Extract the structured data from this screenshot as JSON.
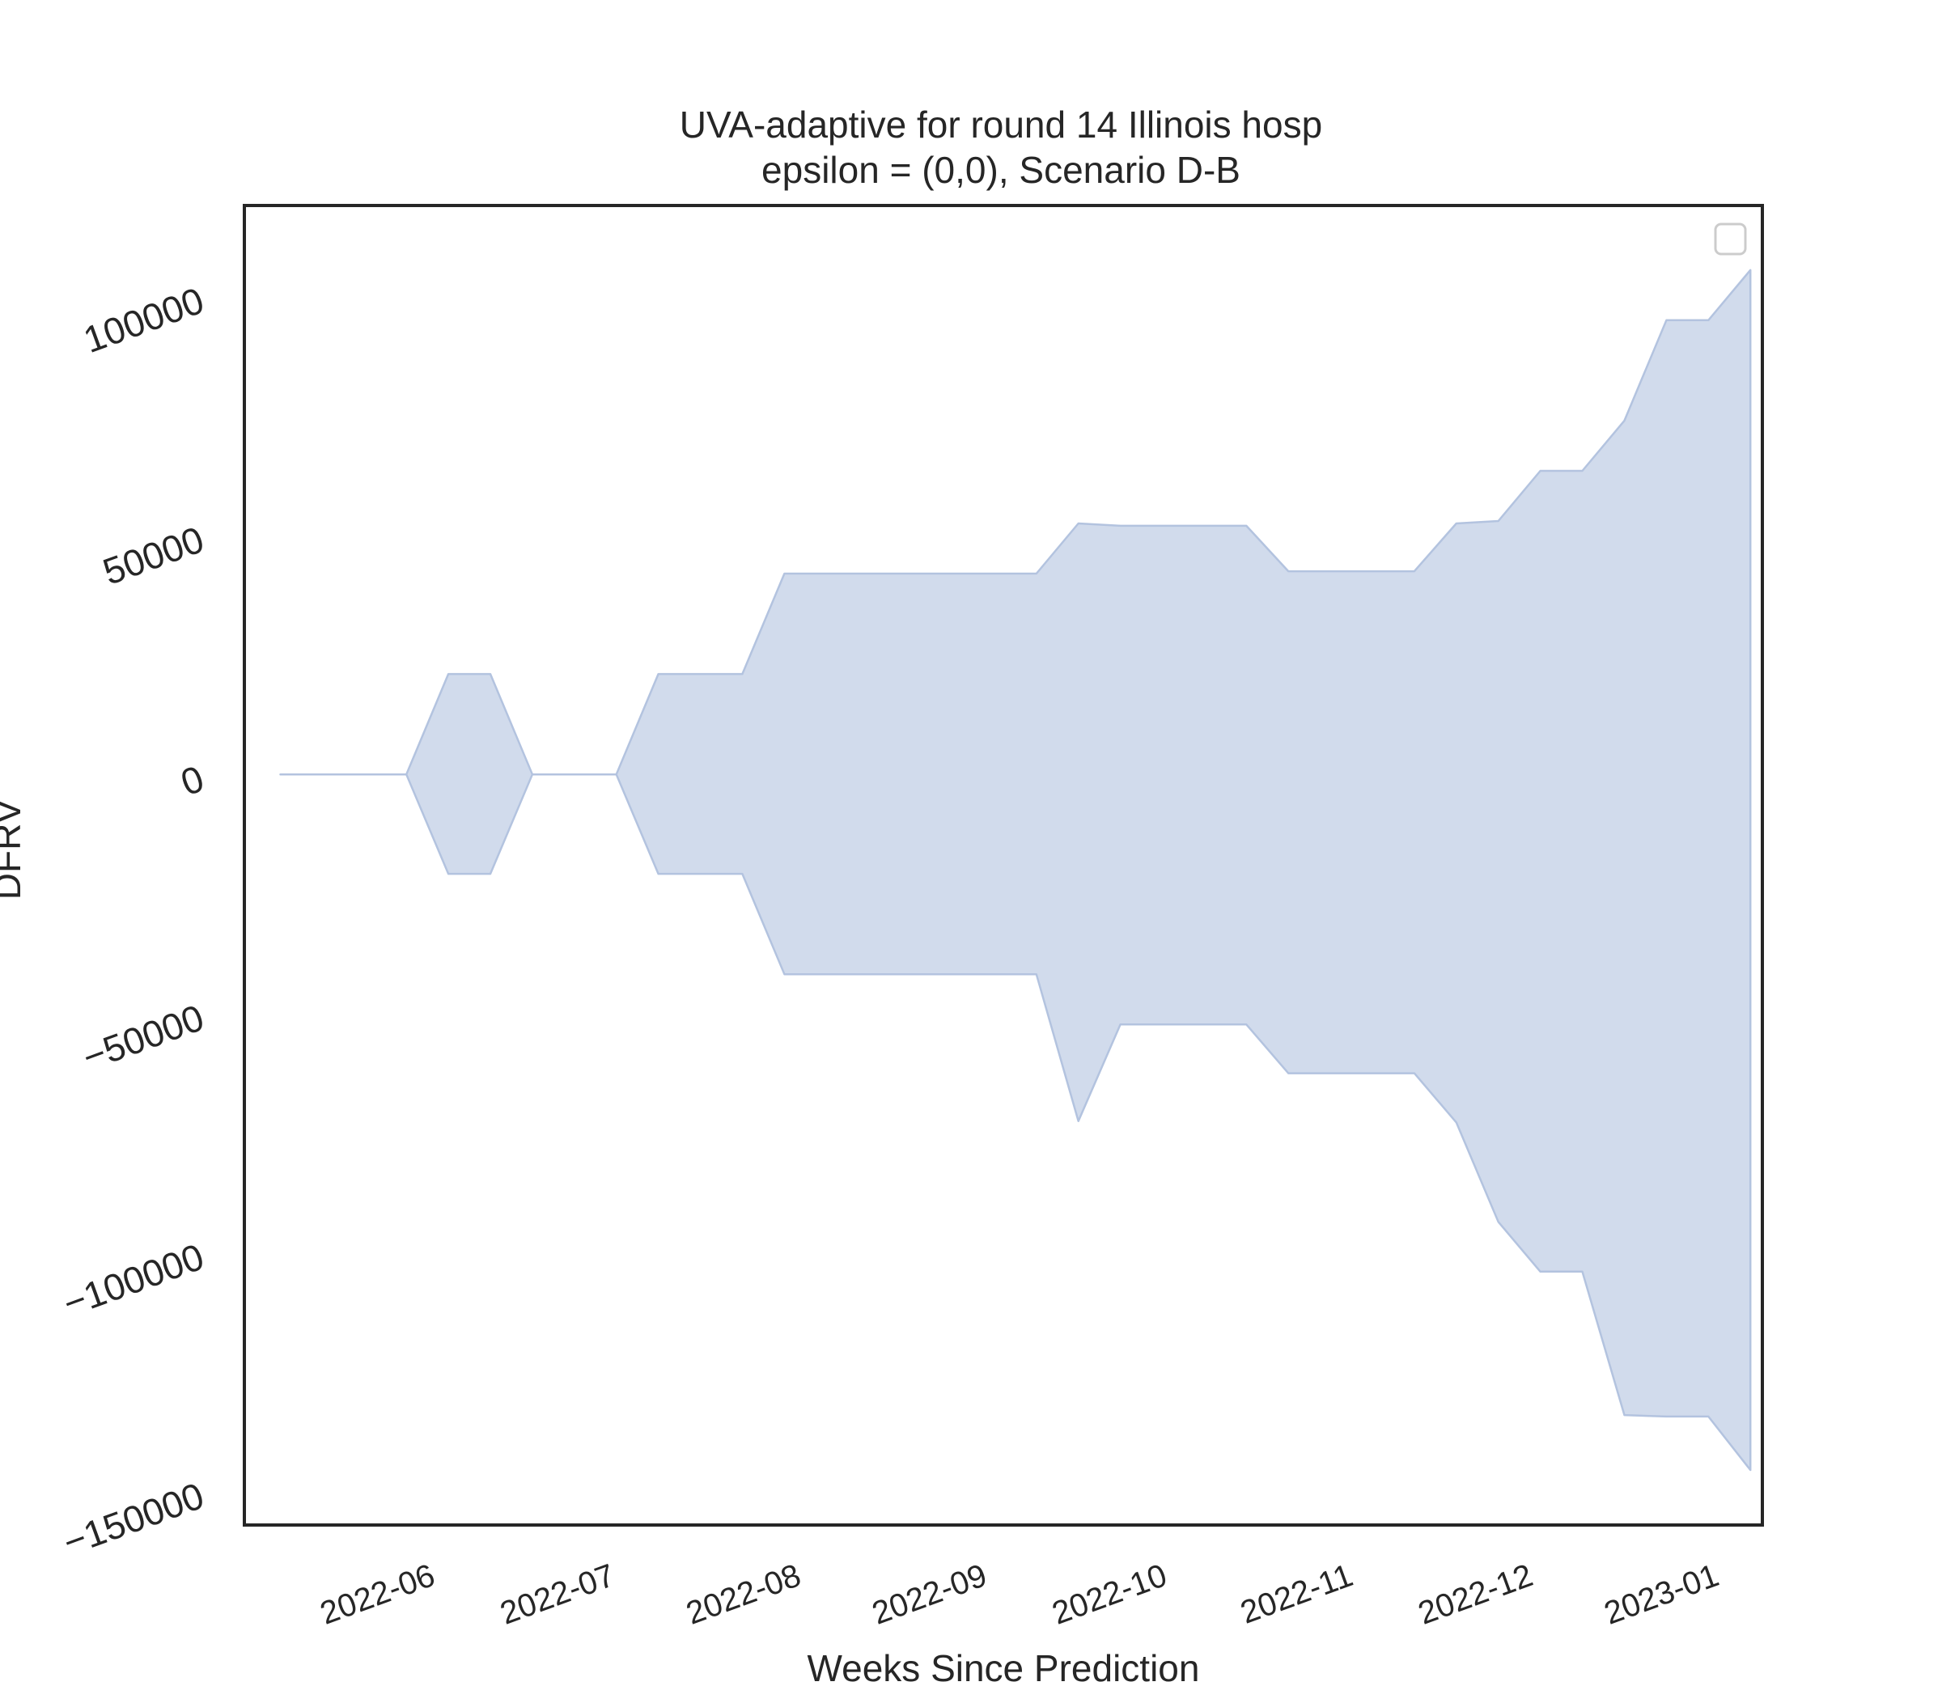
{
  "chart_data": {
    "type": "area",
    "title_line1": "UVA-adaptive for round 14 Illinois hosp",
    "title_line2": "epsilon = (0,0), Scenario D-B",
    "xlabel": "Weeks Since Prediction",
    "ylabel": "DFRV",
    "x_tick_labels": [
      "2022-06",
      "2022-07",
      "2022-08",
      "2022-09",
      "2022-10",
      "2022-11",
      "2022-12",
      "2023-01"
    ],
    "y_tick_labels": [
      "−150000",
      "−100000",
      "−50000",
      "0",
      "50000",
      "100000"
    ],
    "y_ticks": [
      -150000,
      -100000,
      -50000,
      0,
      50000,
      100000
    ],
    "xlim": [
      "2022-05-08",
      "2023-01-16"
    ],
    "ylim": [
      -157000,
      119000
    ],
    "legend": "top-right, empty",
    "grid": false,
    "band": [
      {
        "x": "2022-05-14",
        "lower": 0,
        "upper": 0
      },
      {
        "x": "2022-05-21",
        "lower": 0,
        "upper": 0
      },
      {
        "x": "2022-05-28",
        "lower": 0,
        "upper": 0
      },
      {
        "x": "2022-06-04",
        "lower": 0,
        "upper": 0
      },
      {
        "x": "2022-06-11",
        "lower": -20800,
        "upper": 21000
      },
      {
        "x": "2022-06-18",
        "lower": -20800,
        "upper": 21000
      },
      {
        "x": "2022-06-25",
        "lower": 0,
        "upper": 0
      },
      {
        "x": "2022-07-02",
        "lower": 0,
        "upper": 0
      },
      {
        "x": "2022-07-09",
        "lower": 0,
        "upper": 0
      },
      {
        "x": "2022-07-16",
        "lower": -20800,
        "upper": 21000
      },
      {
        "x": "2022-07-23",
        "lower": -20800,
        "upper": 21000
      },
      {
        "x": "2022-07-30",
        "lower": -20800,
        "upper": 21000
      },
      {
        "x": "2022-08-06",
        "lower": -41800,
        "upper": 42000
      },
      {
        "x": "2022-08-13",
        "lower": -41800,
        "upper": 42000
      },
      {
        "x": "2022-08-20",
        "lower": -41800,
        "upper": 42000
      },
      {
        "x": "2022-08-27",
        "lower": -41800,
        "upper": 42000
      },
      {
        "x": "2022-09-03",
        "lower": -41800,
        "upper": 42000
      },
      {
        "x": "2022-09-10",
        "lower": -41800,
        "upper": 42000
      },
      {
        "x": "2022-09-17",
        "lower": -41800,
        "upper": 42000
      },
      {
        "x": "2022-09-24",
        "lower": -72500,
        "upper": 52500
      },
      {
        "x": "2022-10-01",
        "lower": -52300,
        "upper": 52000
      },
      {
        "x": "2022-10-08",
        "lower": -52300,
        "upper": 52000
      },
      {
        "x": "2022-10-15",
        "lower": -52300,
        "upper": 52000
      },
      {
        "x": "2022-10-22",
        "lower": -52300,
        "upper": 52000
      },
      {
        "x": "2022-10-29",
        "lower": -62500,
        "upper": 42500
      },
      {
        "x": "2022-11-05",
        "lower": -62500,
        "upper": 42500
      },
      {
        "x": "2022-11-12",
        "lower": -62500,
        "upper": 42500
      },
      {
        "x": "2022-11-19",
        "lower": -62500,
        "upper": 42500
      },
      {
        "x": "2022-11-26",
        "lower": -72800,
        "upper": 52500
      },
      {
        "x": "2022-12-03",
        "lower": -93600,
        "upper": 53000
      },
      {
        "x": "2022-12-10",
        "lower": -104000,
        "upper": 63500
      },
      {
        "x": "2022-12-17",
        "lower": -104000,
        "upper": 63500
      },
      {
        "x": "2022-12-24",
        "lower": -134000,
        "upper": 74000
      },
      {
        "x": "2022-12-31",
        "lower": -134300,
        "upper": 95000
      },
      {
        "x": "2023-01-07",
        "lower": -134300,
        "upper": 95000
      },
      {
        "x": "2023-01-14",
        "lower": -145500,
        "upper": 105500
      }
    ],
    "colors": {
      "fill": "#d1dbec",
      "edge": "#b3c3df",
      "axis": "#262626",
      "text": "#262626",
      "legend_edge": "#cccccc"
    }
  }
}
